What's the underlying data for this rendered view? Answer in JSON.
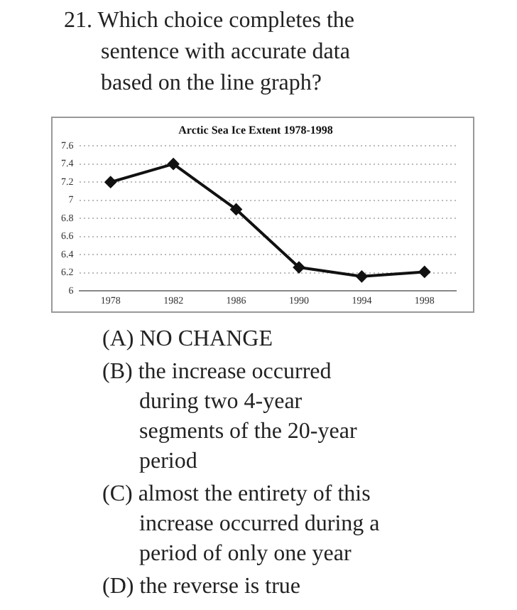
{
  "chart_data": {
    "type": "line",
    "title": "Arctic Sea Ice Extent 1978-1998",
    "categories": [
      "1978",
      "1982",
      "1986",
      "1990",
      "1994",
      "1998"
    ],
    "series": [
      {
        "color": "#111111",
        "values": [
          7.2,
          7.4,
          6.9,
          6.26,
          6.16,
          6.21
        ]
      }
    ],
    "ylim": [
      6,
      7.6
    ],
    "yticks": [
      6,
      6.2,
      6.4,
      6.6,
      6.8,
      7,
      7.2,
      7.4,
      7.6
    ],
    "grid": "y",
    "legend": false,
    "marker": "diamond",
    "line_style": "solid",
    "annotations": [
      "21. Which choice completes the sentence with accurate data based on the line graph?",
      "(A) NO CHANGE",
      "(B) the increase occurred during two 4-year segments of the 20-year period",
      "(C) almost the entirety of this increase occurred during a period of only one year",
      "(D) the reverse is true"
    ]
  }
}
